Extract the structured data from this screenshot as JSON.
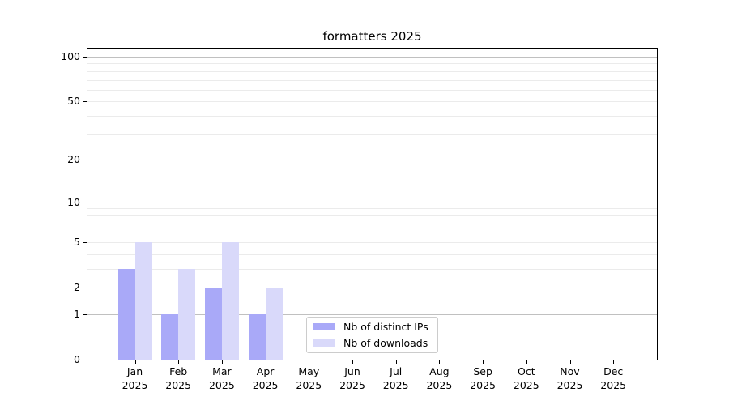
{
  "chart_data": {
    "type": "bar",
    "title": "formatters 2025",
    "categories": [
      "Jan",
      "Feb",
      "Mar",
      "Apr",
      "May",
      "Jun",
      "Jul",
      "Aug",
      "Sep",
      "Oct",
      "Nov",
      "Dec"
    ],
    "x_year": "2025",
    "series": [
      {
        "name": "Nb of distinct IPs",
        "color": "#a9a9f8",
        "values": [
          3,
          1,
          2,
          1,
          0,
          0,
          0,
          0,
          0,
          0,
          0,
          0
        ]
      },
      {
        "name": "Nb of downloads",
        "color": "#d9d9fa",
        "values": [
          5,
          3,
          5,
          2,
          0,
          0,
          0,
          0,
          0,
          0,
          0,
          0
        ]
      }
    ],
    "yscale": "log1p",
    "ylim": [
      0,
      115
    ],
    "y_ticks": [
      0,
      1,
      2,
      5,
      10,
      20,
      50,
      100
    ],
    "y_major_gridlines": [
      1,
      10,
      100
    ],
    "y_minor_gridlines": [
      2,
      3,
      4,
      5,
      6,
      7,
      8,
      9,
      20,
      30,
      40,
      50,
      60,
      70,
      80,
      90
    ],
    "grid": true,
    "legend_position": "lower-center",
    "colors": {
      "major_grid": "#c0c0c0",
      "minor_grid": "#ebebeb",
      "axis": "#000000",
      "background": "#ffffff"
    }
  }
}
